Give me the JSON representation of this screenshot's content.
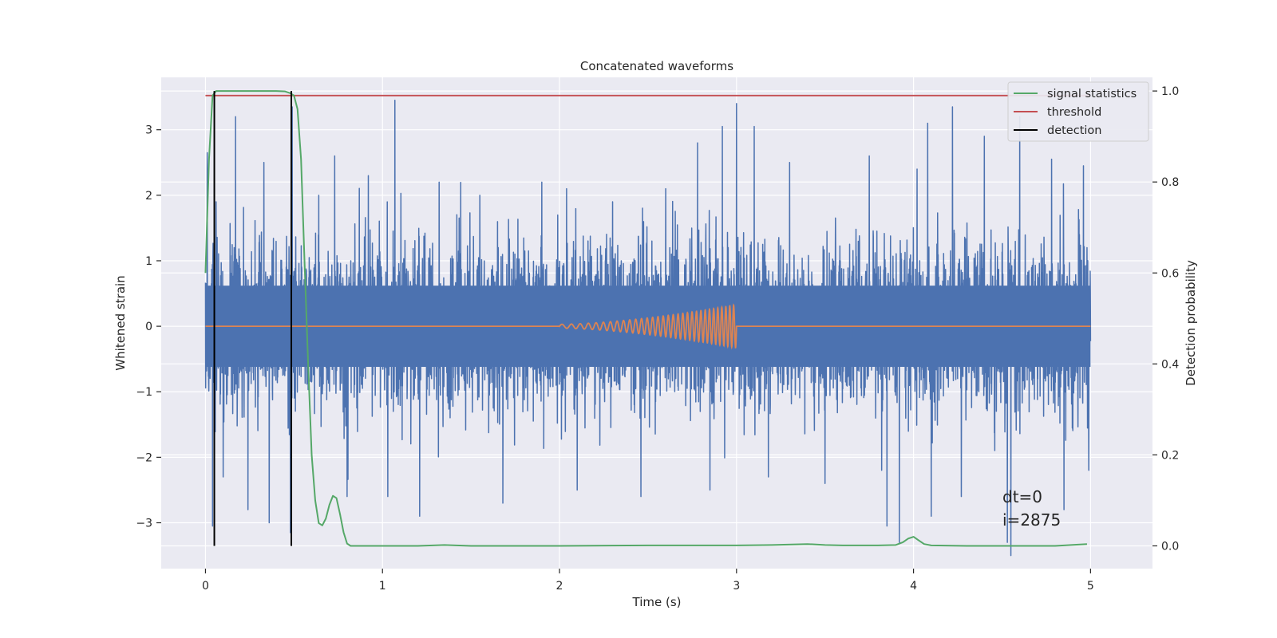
{
  "chart_data": {
    "type": "line",
    "title": "Concatenated waveforms",
    "xlabel": "Time (s)",
    "ylabel": "Whitened strain",
    "y2label": "Detection probability",
    "xlim": [
      -0.25,
      5.35
    ],
    "ylim": [
      -3.7,
      3.8
    ],
    "y2lim": [
      -0.05,
      1.03
    ],
    "x_ticks": [
      0,
      1,
      2,
      3,
      4,
      5
    ],
    "x_tick_labels": [
      "0",
      "1",
      "2",
      "3",
      "4",
      "5"
    ],
    "y_ticks": [
      -3,
      -2,
      -1,
      0,
      1,
      2,
      3
    ],
    "y_tick_labels": [
      "−3",
      "−2",
      "−1",
      "0",
      "1",
      "2",
      "3"
    ],
    "y2_ticks": [
      0.0,
      0.2,
      0.4,
      0.6,
      0.8,
      1.0
    ],
    "y2_tick_labels": [
      "0.0",
      "0.2",
      "0.4",
      "0.6",
      "0.8",
      "1.0"
    ],
    "grid": true,
    "legend_position": "top-right",
    "series": [
      {
        "name": "signal statistics",
        "axis": "right",
        "color": "#55a868",
        "x": [
          0.0,
          0.02,
          0.04,
          0.06,
          0.08,
          0.12,
          0.2,
          0.3,
          0.4,
          0.45,
          0.48,
          0.5,
          0.52,
          0.54,
          0.56,
          0.58,
          0.6,
          0.62,
          0.64,
          0.66,
          0.68,
          0.7,
          0.72,
          0.74,
          0.76,
          0.78,
          0.8,
          0.82,
          0.85,
          0.9,
          1.0,
          1.2,
          1.35,
          1.5,
          2.0,
          2.5,
          3.0,
          3.2,
          3.4,
          3.45,
          3.5,
          3.6,
          3.8,
          3.9,
          3.94,
          3.97,
          4.0,
          4.03,
          4.06,
          4.1,
          4.3,
          4.6,
          4.8,
          4.98
        ],
        "values": [
          0.6,
          0.85,
          0.99,
          1.0,
          1.0,
          1.0,
          1.0,
          1.0,
          1.0,
          0.999,
          0.995,
          0.99,
          0.96,
          0.85,
          0.62,
          0.4,
          0.2,
          0.1,
          0.05,
          0.045,
          0.06,
          0.09,
          0.11,
          0.105,
          0.07,
          0.03,
          0.005,
          0.0,
          0.0,
          0.0,
          0.0,
          0.0,
          0.002,
          0.0,
          0.0,
          0.001,
          0.001,
          0.002,
          0.004,
          0.003,
          0.002,
          0.001,
          0.001,
          0.002,
          0.008,
          0.016,
          0.02,
          0.012,
          0.004,
          0.001,
          0.0,
          0.0,
          0.0,
          0.004
        ]
      },
      {
        "name": "threshold",
        "axis": "right",
        "color": "#c44e52",
        "x": [
          0,
          5
        ],
        "values": [
          0.99,
          0.99
        ]
      },
      {
        "name": "detection",
        "axis": "right",
        "color": "#000000",
        "x": [
          0.05,
          0.485
        ],
        "values": [
          1.0,
          1.0
        ]
      },
      {
        "axis": "left",
        "color": "#4c72b0",
        "description": "whitened noise strain, 0–5 s",
        "x": [
          0,
          5
        ],
        "envelope_core": 0.62,
        "extremes": [
          {
            "x": 0.01,
            "value": 2.65
          },
          {
            "x": 0.04,
            "value": -3.05
          },
          {
            "x": 0.06,
            "value": 1.9
          },
          {
            "x": 0.1,
            "value": -2.3
          },
          {
            "x": 0.17,
            "value": 3.2
          },
          {
            "x": 0.24,
            "value": -2.8
          },
          {
            "x": 0.33,
            "value": 2.5
          },
          {
            "x": 0.36,
            "value": -3.0
          },
          {
            "x": 0.48,
            "value": -3.15
          },
          {
            "x": 0.49,
            "value": 3.35
          },
          {
            "x": 0.64,
            "value": 2.0
          },
          {
            "x": 0.73,
            "value": 2.6
          },
          {
            "x": 0.8,
            "value": -2.6
          },
          {
            "x": 0.92,
            "value": 2.3
          },
          {
            "x": 1.03,
            "value": -2.6
          },
          {
            "x": 1.07,
            "value": 3.45
          },
          {
            "x": 1.21,
            "value": -2.9
          },
          {
            "x": 1.32,
            "value": 2.2
          },
          {
            "x": 1.55,
            "value": 2.0
          },
          {
            "x": 1.68,
            "value": -2.7
          },
          {
            "x": 1.9,
            "value": 2.2
          },
          {
            "x": 2.04,
            "value": 2.1
          },
          {
            "x": 2.1,
            "value": -2.5
          },
          {
            "x": 2.3,
            "value": 1.9
          },
          {
            "x": 2.46,
            "value": -2.6
          },
          {
            "x": 2.6,
            "value": 2.1
          },
          {
            "x": 2.78,
            "value": 2.8
          },
          {
            "x": 2.85,
            "value": -2.5
          },
          {
            "x": 2.92,
            "value": 3.05
          },
          {
            "x": 3.0,
            "value": 3.4
          },
          {
            "x": 3.1,
            "value": 3.05
          },
          {
            "x": 3.18,
            "value": -2.3
          },
          {
            "x": 3.3,
            "value": 2.5
          },
          {
            "x": 3.5,
            "value": -2.4
          },
          {
            "x": 3.75,
            "value": 2.6
          },
          {
            "x": 3.82,
            "value": -2.2
          },
          {
            "x": 3.85,
            "value": -3.05
          },
          {
            "x": 3.92,
            "value": -3.3
          },
          {
            "x": 4.02,
            "value": 2.4
          },
          {
            "x": 4.1,
            "value": -2.9
          },
          {
            "x": 4.08,
            "value": 3.1
          },
          {
            "x": 4.22,
            "value": 3.35
          },
          {
            "x": 4.27,
            "value": -2.6
          },
          {
            "x": 4.4,
            "value": 2.9
          },
          {
            "x": 4.53,
            "value": -3.3
          },
          {
            "x": 4.55,
            "value": -3.5
          },
          {
            "x": 4.6,
            "value": 3.2
          },
          {
            "x": 4.78,
            "value": 2.55
          },
          {
            "x": 4.85,
            "value": -2.8
          },
          {
            "x": 4.96,
            "value": 2.45
          },
          {
            "x": 4.99,
            "value": -2.2
          }
        ]
      },
      {
        "axis": "left",
        "color": "#dd8452",
        "description": "injected chirp signal",
        "x": [
          0,
          5
        ],
        "chirp_start": 2.0,
        "chirp_end": 3.0,
        "amplitude_start": 0.03,
        "amplitude_end": 0.33,
        "cycles": 32
      }
    ],
    "annotations": [
      "dt=0",
      "i=2875"
    ]
  }
}
